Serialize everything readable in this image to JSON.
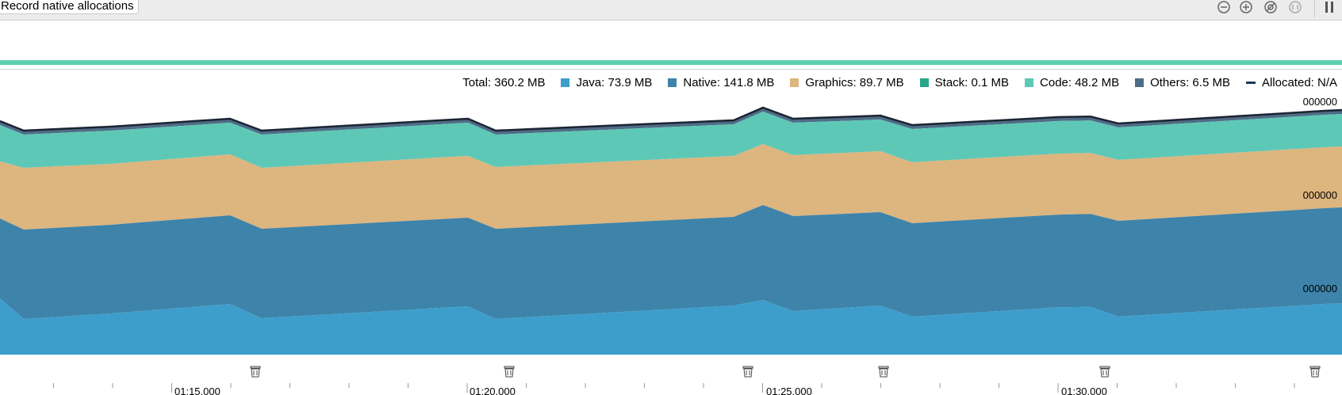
{
  "toolbar": {
    "record_label": "Record native allocations",
    "icons": [
      "zoom-out-icon",
      "zoom-in-icon",
      "reset-zoom-icon",
      "zoom-to-selection-icon",
      "pause-icon"
    ]
  },
  "legend": {
    "total": "Total: 360.2 MB",
    "items": [
      {
        "label": "Java: 73.9 MB",
        "color": "#3d9ecb"
      },
      {
        "label": "Native: 141.8 MB",
        "color": "#3e83aa"
      },
      {
        "label": "Graphics: 89.7 MB",
        "color": "#dcb57f"
      },
      {
        "label": "Stack: 0.1 MB",
        "color": "#2aa58a"
      },
      {
        "label": "Code: 48.2 MB",
        "color": "#5ec8b6"
      },
      {
        "label": "Others: 6.5 MB",
        "color": "#4f6c86"
      },
      {
        "label": "Allocated: N/A",
        "color": "#1b3a57"
      }
    ]
  },
  "y_labels": [
    "000000",
    "000000",
    "000000"
  ],
  "x_labels": [
    "01:15.000",
    "01:20.000",
    "01:25.000",
    "01:30.000"
  ],
  "colors": {
    "java": "#3d9ecb",
    "native": "#3e83aa",
    "graphics": "#dcb57f",
    "code": "#5ec8b6",
    "others": "#4f6c86",
    "outline": "#1c2433",
    "accent_line": "#5ecfb1"
  }
}
